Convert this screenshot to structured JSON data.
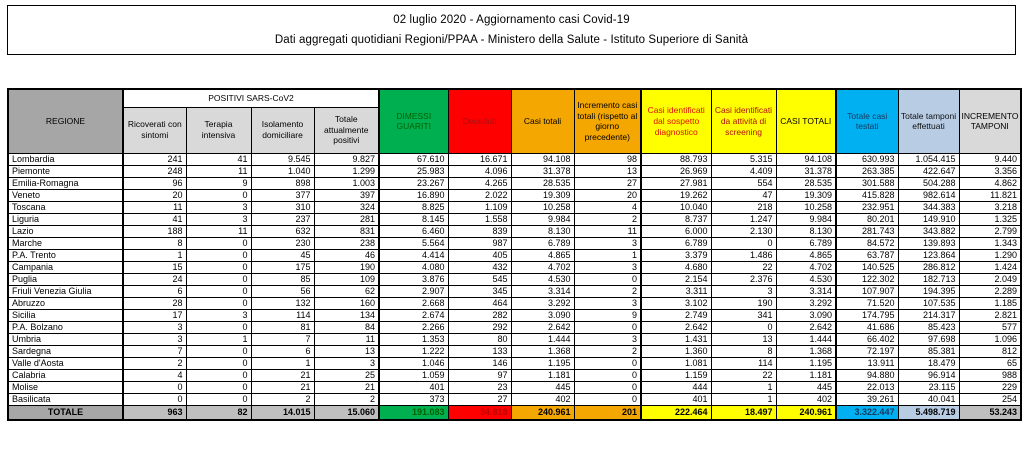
{
  "title": {
    "line1": "02 luglio 2020 - Aggiornamento casi Covid-19",
    "line2": "Dati aggregati quotidiani Regioni/PPAA - Ministero della Salute - Istituto Superiore di Sanità"
  },
  "colors": {
    "green": "#00b050",
    "green_text": "#006100",
    "red": "#ff0000",
    "red_text": "#c00000",
    "orange": "#f4a700",
    "yellow": "#ffff00",
    "blue": "#00b0f0",
    "blue_text": "#17375e",
    "light_blue": "#b8cce4",
    "header_gray": "#a6a6a6",
    "subheader_gray": "#d9d9d9",
    "total_gray": "#bfbfbf"
  },
  "table": {
    "group_header": "POSITIVI SARS-CoV2",
    "columns": [
      "REGIONE",
      "Ricoverati con sintomi",
      "Terapia intensiva",
      "Isolamento domiciliare",
      "Totale attualmente positivi",
      "DIMESSI GUARITI",
      "Deceduti",
      "Casi totali",
      "Incremento casi totali (rispetto al giorno precedente)",
      "Casi identificati dal sospetto diagnostico",
      "Casi identificati da attività di screening",
      "CASI TOTALI",
      "Totale casi testati",
      "Totale tamponi effettuati",
      "INCREMENTO TAMPONI"
    ],
    "rows": [
      [
        "Lombardia",
        "241",
        "41",
        "9.545",
        "9.827",
        "67.610",
        "16.671",
        "94.108",
        "98",
        "88.793",
        "5.315",
        "94.108",
        "630.993",
        "1.054.415",
        "9.440"
      ],
      [
        "Piemonte",
        "248",
        "11",
        "1.040",
        "1.299",
        "25.983",
        "4.096",
        "31.378",
        "13",
        "26.969",
        "4.409",
        "31.378",
        "263.385",
        "422.647",
        "3.356"
      ],
      [
        "Emilia-Romagna",
        "96",
        "9",
        "898",
        "1.003",
        "23.267",
        "4.265",
        "28.535",
        "27",
        "27.981",
        "554",
        "28.535",
        "301.588",
        "504.288",
        "4.862"
      ],
      [
        "Veneto",
        "20",
        "0",
        "377",
        "397",
        "16.890",
        "2.022",
        "19.309",
        "20",
        "19.262",
        "47",
        "19.309",
        "415.828",
        "982.614",
        "11.821"
      ],
      [
        "Toscana",
        "11",
        "3",
        "310",
        "324",
        "8.825",
        "1.109",
        "10.258",
        "4",
        "10.040",
        "218",
        "10.258",
        "232.951",
        "344.383",
        "3.218"
      ],
      [
        "Liguria",
        "41",
        "3",
        "237",
        "281",
        "8.145",
        "1.558",
        "9.984",
        "2",
        "8.737",
        "1.247",
        "9.984",
        "80.201",
        "149.910",
        "1.325"
      ],
      [
        "Lazio",
        "188",
        "11",
        "632",
        "831",
        "6.460",
        "839",
        "8.130",
        "11",
        "6.000",
        "2.130",
        "8.130",
        "281.743",
        "343.882",
        "2.799"
      ],
      [
        "Marche",
        "8",
        "0",
        "230",
        "238",
        "5.564",
        "987",
        "6.789",
        "3",
        "6.789",
        "0",
        "6.789",
        "84.572",
        "139.893",
        "1.343"
      ],
      [
        "P.A. Trento",
        "1",
        "0",
        "45",
        "46",
        "4.414",
        "405",
        "4.865",
        "1",
        "3.379",
        "1.486",
        "4.865",
        "63.787",
        "123.864",
        "1.290"
      ],
      [
        "Campania",
        "15",
        "0",
        "175",
        "190",
        "4.080",
        "432",
        "4.702",
        "3",
        "4.680",
        "22",
        "4.702",
        "140.525",
        "286.812",
        "1.424"
      ],
      [
        "Puglia",
        "24",
        "0",
        "85",
        "109",
        "3.876",
        "545",
        "4.530",
        "0",
        "2.154",
        "2.376",
        "4.530",
        "122.302",
        "182.713",
        "2.049"
      ],
      [
        "Friuli Venezia Giulia",
        "6",
        "0",
        "56",
        "62",
        "2.907",
        "345",
        "3.314",
        "2",
        "3.311",
        "3",
        "3.314",
        "107.907",
        "194.395",
        "2.289"
      ],
      [
        "Abruzzo",
        "28",
        "0",
        "132",
        "160",
        "2.668",
        "464",
        "3.292",
        "3",
        "3.102",
        "190",
        "3.292",
        "71.520",
        "107.535",
        "1.185"
      ],
      [
        "Sicilia",
        "17",
        "3",
        "114",
        "134",
        "2.674",
        "282",
        "3.090",
        "9",
        "2.749",
        "341",
        "3.090",
        "174.795",
        "214.317",
        "2.821"
      ],
      [
        "P.A. Bolzano",
        "3",
        "0",
        "81",
        "84",
        "2.266",
        "292",
        "2.642",
        "0",
        "2.642",
        "0",
        "2.642",
        "41.686",
        "85.423",
        "577"
      ],
      [
        "Umbria",
        "3",
        "1",
        "7",
        "11",
        "1.353",
        "80",
        "1.444",
        "3",
        "1.431",
        "13",
        "1.444",
        "66.402",
        "97.698",
        "1.096"
      ],
      [
        "Sardegna",
        "7",
        "0",
        "6",
        "13",
        "1.222",
        "133",
        "1.368",
        "2",
        "1.360",
        "8",
        "1.368",
        "72.197",
        "85.381",
        "812"
      ],
      [
        "Valle d'Aosta",
        "2",
        "0",
        "1",
        "3",
        "1.046",
        "146",
        "1.195",
        "0",
        "1.081",
        "114",
        "1.195",
        "13.911",
        "18.479",
        "65"
      ],
      [
        "Calabria",
        "4",
        "0",
        "21",
        "25",
        "1.059",
        "97",
        "1.181",
        "0",
        "1.159",
        "22",
        "1.181",
        "94.880",
        "96.914",
        "988"
      ],
      [
        "Molise",
        "0",
        "0",
        "21",
        "21",
        "401",
        "23",
        "445",
        "0",
        "444",
        "1",
        "445",
        "22.013",
        "23.115",
        "229"
      ],
      [
        "Basilicata",
        "0",
        "0",
        "2",
        "2",
        "373",
        "27",
        "402",
        "0",
        "401",
        "1",
        "402",
        "39.261",
        "40.041",
        "254"
      ]
    ],
    "total": [
      "TOTALE",
      "963",
      "82",
      "14.015",
      "15.060",
      "191.083",
      "34.818",
      "240.961",
      "201",
      "222.464",
      "18.497",
      "240.961",
      "3.322.447",
      "5.498.719",
      "53.243"
    ]
  }
}
